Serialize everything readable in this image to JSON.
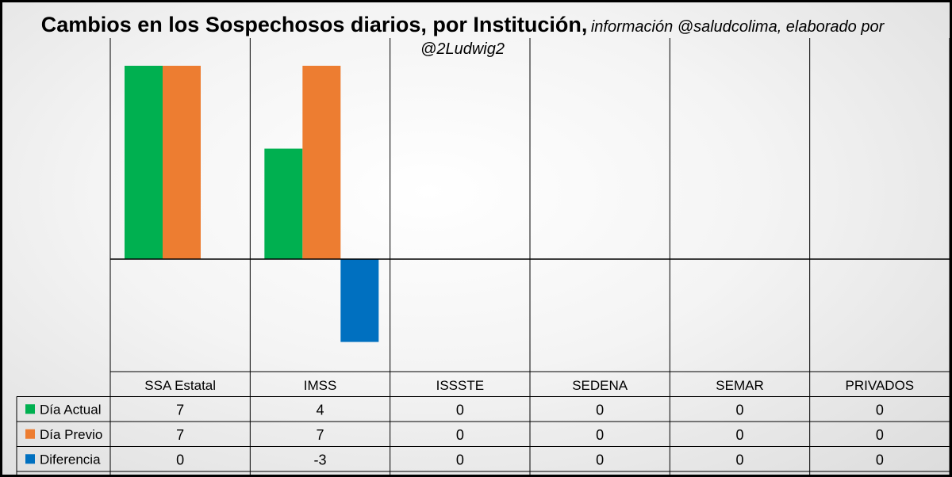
{
  "chart_data": {
    "type": "bar",
    "title": "Cambios en los Sospechosos diarios, por Institución,",
    "subtitle": "información @saludcolima, elaborado por @2Ludwig2",
    "categories": [
      "SSA Estatal",
      "IMSS",
      "ISSSTE",
      "SEDENA",
      "SEMAR",
      "PRIVADOS"
    ],
    "series": [
      {
        "name": "Día Actual",
        "values": [
          7,
          4,
          0,
          0,
          0,
          0
        ],
        "color": "#00b050"
      },
      {
        "name": "Día Previo",
        "values": [
          7,
          7,
          0,
          0,
          0,
          0
        ],
        "color": "#ed7d31"
      },
      {
        "name": "Diferencia",
        "values": [
          0,
          -3,
          0,
          0,
          0,
          0
        ],
        "color": "#0070c0"
      }
    ],
    "ylim": [
      -3,
      7
    ],
    "grid": true,
    "legend": "data-table"
  }
}
